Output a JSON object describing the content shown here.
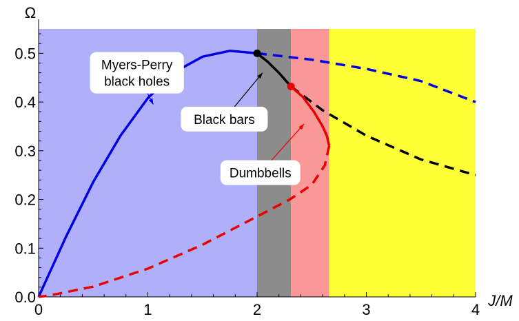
{
  "chart_data": {
    "type": "line",
    "xlabel": "J/M",
    "ylabel": "Ω",
    "xlim": [
      0,
      4
    ],
    "ylim": [
      0,
      0.55
    ],
    "x_ticks": [
      "0",
      "1",
      "2",
      "3",
      "4"
    ],
    "y_ticks": [
      "0.0",
      "0.1",
      "0.2",
      "0.3",
      "0.4",
      "0.5"
    ],
    "regions": [
      {
        "x0": 0,
        "x1": 2.0,
        "color": "#b0b0fa"
      },
      {
        "x0": 2.0,
        "x1": 2.31,
        "color": "#8c8c8c"
      },
      {
        "x0": 2.31,
        "x1": 2.66,
        "color": "#fa9898"
      },
      {
        "x0": 2.66,
        "x1": 4.0,
        "color": "#ffff38"
      }
    ],
    "series": [
      {
        "name": "Myers-Perry black holes",
        "color": "#0000e0",
        "style": "solid",
        "x": [
          0,
          0.25,
          0.5,
          0.75,
          1.0,
          1.25,
          1.5,
          1.75,
          2.0
        ],
        "y": [
          0,
          0.123,
          0.236,
          0.331,
          0.408,
          0.462,
          0.493,
          0.505,
          0.5
        ]
      },
      {
        "name": "",
        "color": "#0000e0",
        "style": "dashed",
        "x": [
          2.0,
          2.5,
          3.0,
          3.5,
          4.0
        ],
        "y": [
          0.5,
          0.487,
          0.468,
          0.443,
          0.4
        ]
      },
      {
        "name": "Black bars",
        "color": "#000000",
        "style": "solid",
        "x": [
          2.0,
          2.1,
          2.2,
          2.31
        ],
        "y": [
          0.5,
          0.482,
          0.46,
          0.432
        ]
      },
      {
        "name": "",
        "color": "#000000",
        "style": "dashed",
        "x": [
          2.31,
          2.6,
          3.0,
          3.5,
          4.0
        ],
        "y": [
          0.432,
          0.383,
          0.331,
          0.282,
          0.25
        ]
      },
      {
        "name": "Dumbbells",
        "color": "#e80000",
        "style": "solid",
        "x": [
          2.31,
          2.42,
          2.52,
          2.6,
          2.64,
          2.66
        ],
        "y": [
          0.432,
          0.41,
          0.38,
          0.35,
          0.33,
          0.31
        ]
      },
      {
        "name": "",
        "color": "#e80000",
        "style": "dashed",
        "x": [
          2.66,
          2.62,
          2.5,
          2.3,
          2.0,
          1.5,
          1.0,
          0.5,
          0.1,
          0
        ],
        "y": [
          0.31,
          0.27,
          0.23,
          0.2,
          0.165,
          0.107,
          0.058,
          0.021,
          0.003,
          0
        ]
      }
    ],
    "points": [
      {
        "x": 2.0,
        "y": 0.5,
        "color": "#000000"
      },
      {
        "x": 2.31,
        "y": 0.432,
        "color": "#e80000"
      }
    ],
    "annotations": [
      {
        "lines": [
          "Myers-Perry",
          "black holes"
        ],
        "color": "#0000e0",
        "at": [
          0.9,
          0.46
        ],
        "arrow_to": [
          1.05,
          0.395
        ]
      },
      {
        "lines": [
          "Black bars"
        ],
        "color": "#000000",
        "at": [
          1.7,
          0.365
        ],
        "arrow_to": [
          2.05,
          0.46
        ]
      },
      {
        "lines": [
          "Dumbbells"
        ],
        "color": "#e80000",
        "at": [
          2.03,
          0.255
        ],
        "arrow_to": [
          2.43,
          0.355
        ]
      }
    ]
  }
}
